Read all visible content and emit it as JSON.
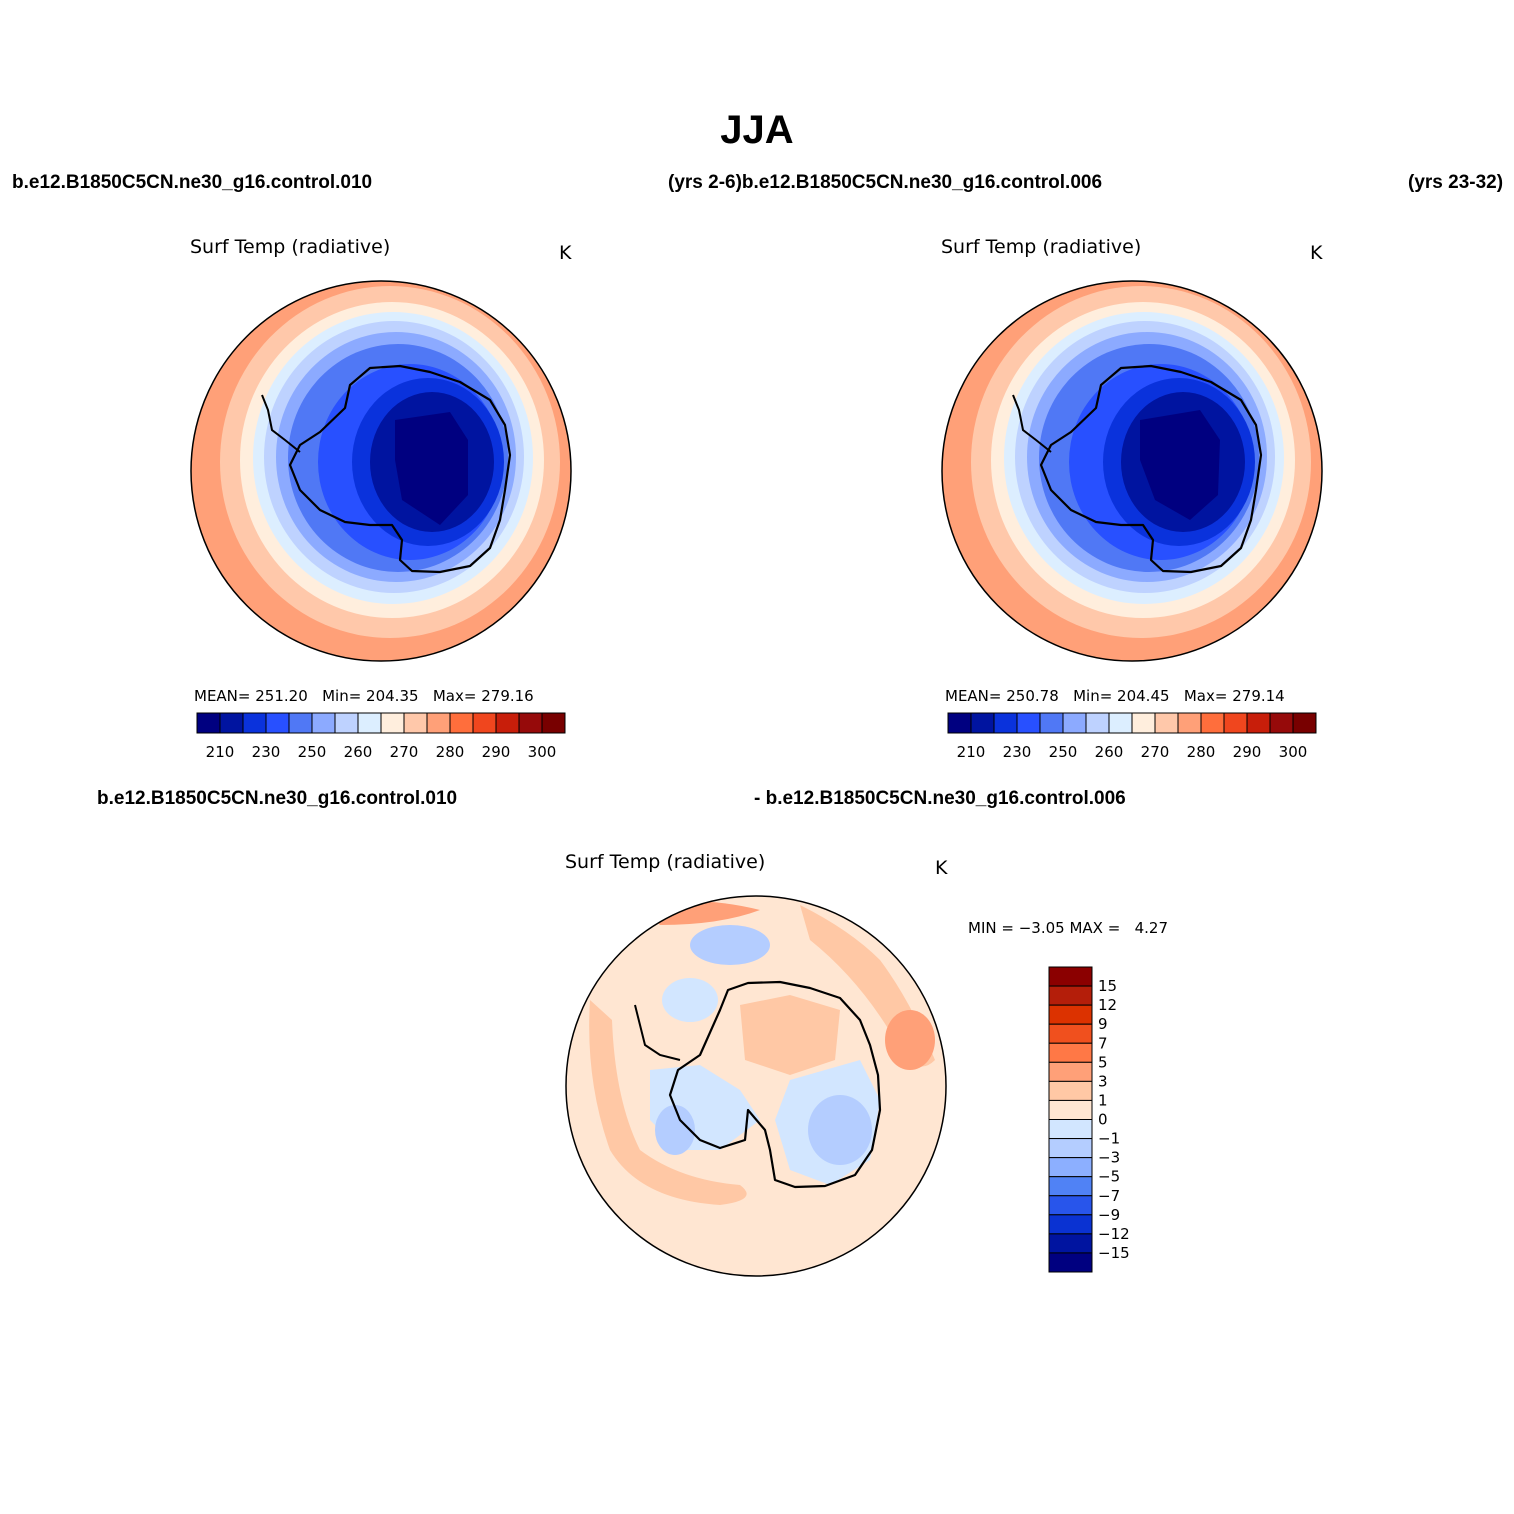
{
  "figure": {
    "title": "JJA",
    "top_left_case": "b.e12.B1850C5CN.ne30_g16.control.010",
    "top_mid_label": "(yrs 2-6)b.e12.B1850C5CN.ne30_g16.control.006",
    "top_right_label": "(yrs 23-32)",
    "bottom_left_case": "b.e12.B1850C5CN.ne30_g16.control.010",
    "bottom_mid_label": "- b.e12.B1850C5CN.ne30_g16.control.006"
  },
  "panels": [
    {
      "title": "Surf Temp (radiative)",
      "units": "K",
      "stats": {
        "mean_label": "MEAN=",
        "mean": "251.20",
        "min_label": "Min=",
        "min": "204.35",
        "max_label": "Max=",
        "max": "279.16"
      }
    },
    {
      "title": "Surf Temp (radiative)",
      "units": "K",
      "stats": {
        "mean_label": "MEAN=",
        "mean": "250.78",
        "min_label": "Min=",
        "min": "204.45",
        "max_label": "Max=",
        "max": "279.14"
      }
    },
    {
      "title": "Surf Temp (radiative)",
      "units": "K",
      "stats": {
        "min_label": "MIN =",
        "min": "−3.05",
        "max_label": "MAX =",
        "max": "4.27"
      }
    }
  ],
  "colorbar_abs": {
    "tick_labels": [
      "210",
      "230",
      "250",
      "260",
      "270",
      "280",
      "290",
      "300"
    ],
    "colors": [
      "#000080",
      "#0014a0",
      "#0a32dc",
      "#2850ff",
      "#5078f5",
      "#8caaff",
      "#bed2ff",
      "#dceeff",
      "#ffeedd",
      "#ffc8aa",
      "#ffa078",
      "#ff6e3c",
      "#f0461e",
      "#c81e0a",
      "#960a0a",
      "#780000"
    ]
  },
  "colorbar_diff": {
    "tick_labels": [
      "15",
      "12",
      "9",
      "7",
      "5",
      "3",
      "1",
      "0",
      "−1",
      "−3",
      "−5",
      "−7",
      "−9",
      "−12",
      "−15"
    ],
    "colors": [
      "#8b0000",
      "#b41e0a",
      "#dc3200",
      "#f0501e",
      "#ff7846",
      "#ffa078",
      "#ffc8a5",
      "#ffe6d2",
      "#d2e6ff",
      "#b4cdff",
      "#8cafff",
      "#5082f5",
      "#2855eb",
      "#0a32d2",
      "#0014a0",
      "#000080"
    ]
  },
  "palette": {
    "deep_cold": "#000080",
    "mid_cold": "#0a32dc",
    "light_blue": "#bed2ff",
    "warm_pale": "#ffeedd",
    "warm": "#ffa078"
  }
}
